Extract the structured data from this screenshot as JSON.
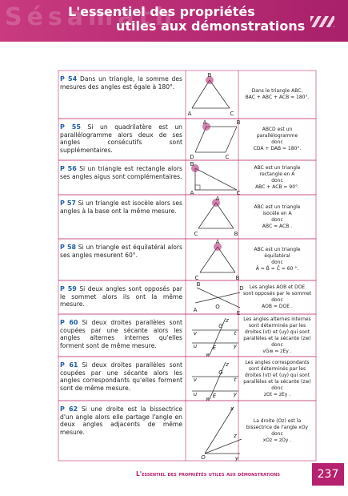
{
  "header": {
    "watermark": "Sésamath",
    "title_lines": [
      "L'essentiel des propriétés",
      "utiles aux démonstrations"
    ]
  },
  "rows": [
    {
      "label": "P 54",
      "text": "Dans un triangle, la somme des mesures des angles est égale à 180°.",
      "figure_labels": [
        "B",
        "A",
        "C"
      ],
      "result": [
        "Dans le triangle ABC,",
        "BAC + ABC + ACB = 180°."
      ]
    },
    {
      "label": "P 55",
      "text": "Si un quadrilatère est un parallélogramme alors deux de ses angles consécutifs sont supplémentaires.",
      "figure_labels": [
        "A",
        "B",
        "C",
        "D"
      ],
      "result": [
        "ABCD est un",
        "parallélogramme",
        "donc",
        "CDA + DAB = 180°."
      ]
    },
    {
      "label": "P 56",
      "text": "Si un triangle est rectangle alors ses angles aigus sont complémentaires.",
      "figure_labels": [
        "B",
        "A",
        "C"
      ],
      "result": [
        "ABC est un triangle",
        "rectangle en A",
        "donc",
        "ABC + ACB = 90°."
      ]
    },
    {
      "label": "P 57",
      "text": "Si un triangle est isocèle alors ses angles à la base ont la même mesure.",
      "figure_labels": [
        "A",
        "C",
        "B"
      ],
      "result": [
        "ABC est un triangle",
        "isocèle en A",
        "donc",
        "ABC = ACB ."
      ]
    },
    {
      "label": "P 58",
      "text": "Si un triangle est équilatéral alors ses angles mesurent 60°.",
      "figure_labels": [
        "A",
        "C",
        "B"
      ],
      "result": [
        "ABC est un triangle",
        "équilatéral",
        "donc",
        "Â = B̂ = Ĉ = 60 °."
      ]
    },
    {
      "label": "P 59",
      "text": "Si deux angles sont opposés par le sommet alors ils ont la même mesure.",
      "figure_labels": [
        "B",
        "A",
        "O",
        "D",
        "E"
      ],
      "result": [
        "Les angles AOB et DOE",
        "sont opposés par le sommet",
        "donc",
        "AOB = DOE ."
      ]
    },
    {
      "label": "P 60",
      "text": "Si deux droites parallèles sont coupées par une sécante alors les angles alternes internes qu'elles forment sont de même mesure.",
      "figure_labels": [
        "z",
        "v",
        "G",
        "t",
        "u",
        "E",
        "y",
        "w"
      ],
      "result": [
        "Les angles alternes internes",
        "sont déterminés par les",
        "droites (vt) et (uy) qui sont",
        "parallèles et la sécante (zw)",
        "donc",
        "vGw = zEy ."
      ]
    },
    {
      "label": "P 61",
      "text": "Si deux droites parallèles sont coupées par une sécante alors les angles correspondants qu'elles forment sont de même mesure.",
      "figure_labels": [
        "z",
        "v",
        "G",
        "t",
        "u",
        "E",
        "y",
        "w"
      ],
      "result": [
        "Les angles correspondants",
        "sont déterminés par les",
        "droites (vt) et (uy) qui sont",
        "parallèles et la sécante (zw)",
        "donc",
        "zGt = zEy ."
      ]
    },
    {
      "label": "P 62",
      "text": "Si une droite est la bissectrice d'un angle alors elle partage l'angle en deux angles adjacents de même mesure.",
      "figure_labels": [
        "x",
        "z",
        "y",
        "O"
      ],
      "result": [
        "La droite (Oz) est la",
        "bissectrice de l'angle xOy",
        "donc",
        "xOz = zOy ."
      ]
    }
  ],
  "footer": {
    "title": "L'essentiel des propriétés utiles aux démonstrations",
    "page_number": "237"
  }
}
